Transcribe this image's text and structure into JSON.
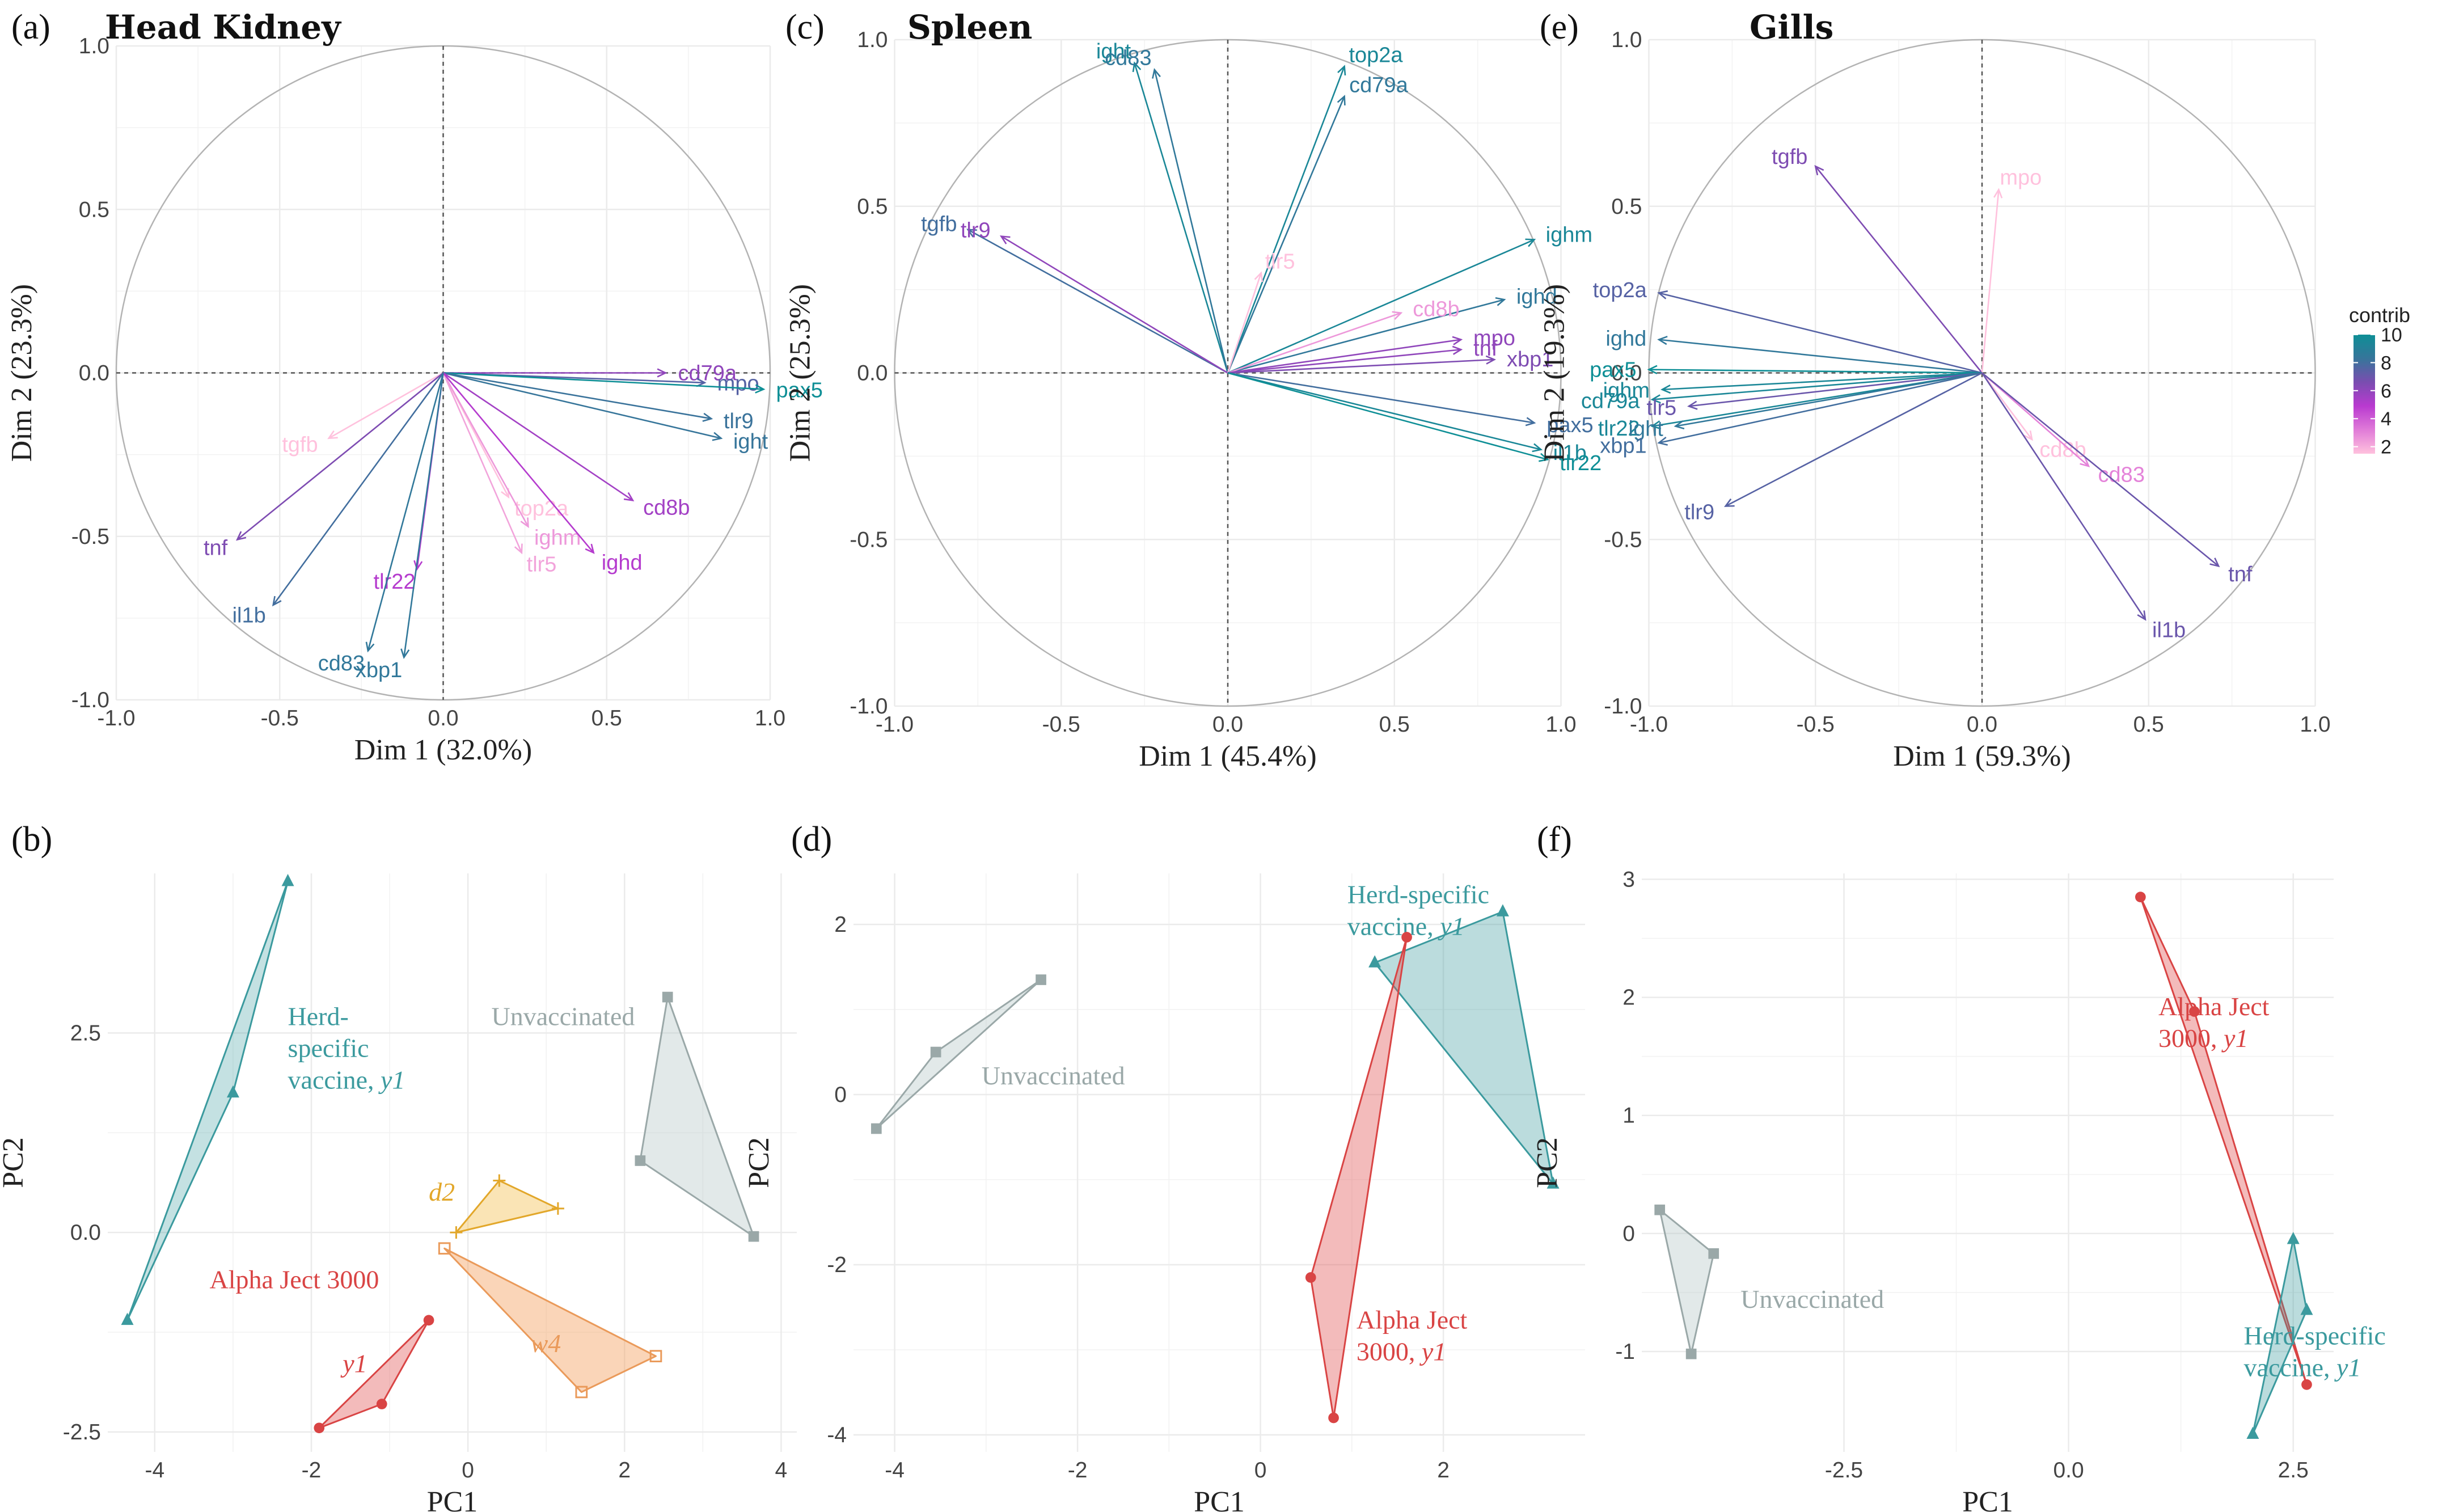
{
  "chart_data": [
    {
      "id": "a",
      "type": "pca-variables",
      "panel_label": "(a)",
      "title": "Head Kidney",
      "xlabel": "Dim 1 (32.0%)",
      "ylabel": "Dim 2 (23.3%)",
      "xlim": [
        -1.0,
        1.0
      ],
      "ylim": [
        -1.0,
        1.0
      ],
      "xticks": [
        {
          "v": -1.0,
          "t": "-1.0"
        },
        {
          "v": -0.5,
          "t": "-0.5"
        },
        {
          "v": 0.0,
          "t": "0.0"
        },
        {
          "v": 0.5,
          "t": "0.5"
        },
        {
          "v": 1.0,
          "t": "1.0"
        }
      ],
      "yticks": [
        {
          "v": -1.0,
          "t": "-1.0"
        },
        {
          "v": -0.5,
          "t": "-0.5"
        },
        {
          "v": 0.0,
          "t": "0.0"
        },
        {
          "v": 0.5,
          "t": "0.5"
        },
        {
          "v": 1.0,
          "t": "1.0"
        }
      ],
      "variables": [
        {
          "name": "cd79a",
          "x": 0.68,
          "y": 0.0,
          "contrib": 6.0
        },
        {
          "name": "mpo",
          "x": 0.8,
          "y": -0.03,
          "contrib": 7.5
        },
        {
          "name": "pax5",
          "x": 0.98,
          "y": -0.05,
          "contrib": 10.0
        },
        {
          "name": "tlr9",
          "x": 0.82,
          "y": -0.14,
          "contrib": 8.2
        },
        {
          "name": "ight",
          "x": 0.85,
          "y": -0.2,
          "contrib": 8.3
        },
        {
          "name": "tgfb",
          "x": -0.35,
          "y": -0.2,
          "contrib": 1.5
        },
        {
          "name": "top2a",
          "x": 0.2,
          "y": -0.38,
          "contrib": 1.5
        },
        {
          "name": "ighm",
          "x": 0.26,
          "y": -0.47,
          "contrib": 2.5
        },
        {
          "name": "tlr5",
          "x": 0.24,
          "y": -0.55,
          "contrib": 2.2
        },
        {
          "name": "cd8b",
          "x": 0.58,
          "y": -0.39,
          "contrib": 5.5
        },
        {
          "name": "ighd",
          "x": 0.46,
          "y": -0.55,
          "contrib": 5.0
        },
        {
          "name": "tnf",
          "x": -0.63,
          "y": -0.51,
          "contrib": 6.5
        },
        {
          "name": "il1b",
          "x": -0.52,
          "y": -0.71,
          "contrib": 8.0
        },
        {
          "name": "tlr22",
          "x": -0.08,
          "y": -0.6,
          "contrib": 5.0
        },
        {
          "name": "cd83",
          "x": -0.23,
          "y": -0.85,
          "contrib": 8.5
        },
        {
          "name": "xbp1",
          "x": -0.12,
          "y": -0.87,
          "contrib": 8.5
        }
      ]
    },
    {
      "id": "c",
      "type": "pca-variables",
      "panel_label": "(c)",
      "title": "Spleen",
      "xlabel": "Dim 1 (45.4%)",
      "ylabel": "Dim 2 (25.3%)",
      "xlim": [
        -1.0,
        1.0
      ],
      "ylim": [
        -1.0,
        1.0
      ],
      "xticks": [
        {
          "v": -1.0,
          "t": "-1.0"
        },
        {
          "v": -0.5,
          "t": "-0.5"
        },
        {
          "v": 0.0,
          "t": "0.0"
        },
        {
          "v": 0.5,
          "t": "0.5"
        },
        {
          "v": 1.0,
          "t": "1.0"
        }
      ],
      "yticks": [
        {
          "v": -1.0,
          "t": "-1.0"
        },
        {
          "v": -0.5,
          "t": "-0.5"
        },
        {
          "v": 0.0,
          "t": "0.0"
        },
        {
          "v": 0.5,
          "t": "0.5"
        },
        {
          "v": 1.0,
          "t": "1.0"
        }
      ],
      "variables": [
        {
          "name": "ight",
          "x": -0.28,
          "y": 0.93,
          "contrib": 9.5
        },
        {
          "name": "cd83",
          "x": -0.22,
          "y": 0.91,
          "contrib": 8.5
        },
        {
          "name": "top2a",
          "x": 0.35,
          "y": 0.92,
          "contrib": 9.5
        },
        {
          "name": "cd79a",
          "x": 0.35,
          "y": 0.83,
          "contrib": 8.5
        },
        {
          "name": "tgfb",
          "x": -0.78,
          "y": 0.43,
          "contrib": 8.0
        },
        {
          "name": "tlr9",
          "x": -0.68,
          "y": 0.41,
          "contrib": 6.0
        },
        {
          "name": "tlr5",
          "x": 0.1,
          "y": 0.3,
          "contrib": 1.5
        },
        {
          "name": "ighm",
          "x": 0.92,
          "y": 0.4,
          "contrib": 9.5
        },
        {
          "name": "ighd",
          "x": 0.83,
          "y": 0.22,
          "contrib": 8.5
        },
        {
          "name": "cd8b",
          "x": 0.52,
          "y": 0.18,
          "contrib": 2.5
        },
        {
          "name": "mpo",
          "x": 0.7,
          "y": 0.1,
          "contrib": 6.0
        },
        {
          "name": "tnf",
          "x": 0.7,
          "y": 0.07,
          "contrib": 6.0
        },
        {
          "name": "xbp1",
          "x": 0.8,
          "y": 0.04,
          "contrib": 6.5
        },
        {
          "name": "pax5",
          "x": 0.92,
          "y": -0.15,
          "contrib": 8.0
        },
        {
          "name": "il1b",
          "x": 0.94,
          "y": -0.23,
          "contrib": 9.5
        },
        {
          "name": "tlr22",
          "x": 0.96,
          "y": -0.26,
          "contrib": 10.0
        }
      ]
    },
    {
      "id": "e",
      "type": "pca-variables",
      "panel_label": "(e)",
      "title": "Gills",
      "xlabel": "Dim 1 (59.3%)",
      "ylabel": "Dim 2 (19.3%)",
      "xlim": [
        -1.0,
        1.0
      ],
      "ylim": [
        -1.0,
        1.0
      ],
      "xticks": [
        {
          "v": -1.0,
          "t": "-1.0"
        },
        {
          "v": -0.5,
          "t": "-0.5"
        },
        {
          "v": 0.0,
          "t": "0.0"
        },
        {
          "v": 0.5,
          "t": "0.5"
        },
        {
          "v": 1.0,
          "t": "1.0"
        }
      ],
      "yticks": [
        {
          "v": -1.0,
          "t": "-1.0"
        },
        {
          "v": -0.5,
          "t": "-0.5"
        },
        {
          "v": 0.0,
          "t": "0.0"
        },
        {
          "v": 0.5,
          "t": "0.5"
        },
        {
          "v": 1.0,
          "t": "1.0"
        }
      ],
      "variables": [
        {
          "name": "tgfb",
          "x": -0.5,
          "y": 0.62,
          "contrib": 6.5
        },
        {
          "name": "mpo",
          "x": 0.05,
          "y": 0.55,
          "contrib": 1.5
        },
        {
          "name": "top2a",
          "x": -0.97,
          "y": 0.24,
          "contrib": 7.5
        },
        {
          "name": "ighd",
          "x": -0.97,
          "y": 0.1,
          "contrib": 8.5
        },
        {
          "name": "pax5",
          "x": -1.0,
          "y": 0.01,
          "contrib": 10.0
        },
        {
          "name": "ighm",
          "x": -0.96,
          "y": -0.05,
          "contrib": 9.5
        },
        {
          "name": "cd79a",
          "x": -0.99,
          "y": -0.08,
          "contrib": 9.5
        },
        {
          "name": "tlr5",
          "x": -0.88,
          "y": -0.1,
          "contrib": 7.0
        },
        {
          "name": "tlr22",
          "x": -0.99,
          "y": -0.16,
          "contrib": 9.5
        },
        {
          "name": "ight",
          "x": -0.92,
          "y": -0.16,
          "contrib": 8.5
        },
        {
          "name": "xbp1",
          "x": -0.97,
          "y": -0.21,
          "contrib": 8.0
        },
        {
          "name": "tlr9",
          "x": -0.77,
          "y": -0.4,
          "contrib": 7.5
        },
        {
          "name": "cd8b",
          "x": 0.15,
          "y": -0.2,
          "contrib": 1.5
        },
        {
          "name": "cd83",
          "x": 0.32,
          "y": -0.28,
          "contrib": 3.0
        },
        {
          "name": "tnf",
          "x": 0.71,
          "y": -0.58,
          "contrib": 7.0
        },
        {
          "name": "il1b",
          "x": 0.49,
          "y": -0.74,
          "contrib": 7.0
        }
      ]
    },
    {
      "id": "b",
      "type": "pca-individuals",
      "panel_label": "(b)",
      "xlabel": "PC1",
      "ylabel": "PC2",
      "xlim": [
        -4.6,
        4.2
      ],
      "ylim": [
        -2.75,
        4.5
      ],
      "xticks": [
        {
          "v": -4,
          "t": "-4"
        },
        {
          "v": -2,
          "t": "-2"
        },
        {
          "v": 0,
          "t": "0"
        },
        {
          "v": 2,
          "t": "2"
        },
        {
          "v": 4,
          "t": "4"
        }
      ],
      "yticks": [
        {
          "v": -2.5,
          "t": "-2.5"
        },
        {
          "v": 0.0,
          "t": "0.0"
        },
        {
          "v": 2.5,
          "t": "2.5"
        }
      ],
      "groups": [
        {
          "name": "Herd-specific vaccine, y1",
          "label_lines": [
            [
              "Herd-",
              ""
            ],
            [
              "specific",
              ""
            ],
            [
              "vaccine, ",
              "y1"
            ]
          ],
          "label_x": -2.3,
          "label_y": 2.6,
          "color": "#3b9a9e",
          "fill": "#3b9a9e",
          "fill_opacity": 0.3,
          "marker": "triangle",
          "points": [
            [
              -2.3,
              4.4
            ],
            [
              -3.0,
              1.75
            ],
            [
              -4.35,
              -1.1
            ]
          ]
        },
        {
          "name": "Unvaccinated",
          "label_lines": [
            [
              "Unvaccinated",
              ""
            ]
          ],
          "label_x": 0.3,
          "label_y": 2.6,
          "color": "#9aa8a8",
          "fill": "#b7c9c8",
          "fill_opacity": 0.4,
          "marker": "square",
          "points": [
            [
              2.55,
              2.95
            ],
            [
              2.2,
              0.9
            ],
            [
              3.65,
              -0.05
            ]
          ]
        },
        {
          "name": "d2",
          "label_lines": [
            [
              "",
              "d2"
            ]
          ],
          "label_x": -0.5,
          "label_y": 0.4,
          "color": "#e2a72a",
          "fill": "#f5c45a",
          "fill_opacity": 0.45,
          "marker": "plus",
          "points": [
            [
              -0.15,
              0.0
            ],
            [
              0.4,
              0.65
            ],
            [
              1.15,
              0.3
            ]
          ]
        },
        {
          "name": "w4",
          "label_lines": [
            [
              "",
              "w4"
            ]
          ],
          "label_x": 0.8,
          "label_y": -1.5,
          "color": "#ea9a5a",
          "fill": "#f4a261",
          "fill_opacity": 0.45,
          "marker": "square-open",
          "points": [
            [
              -0.3,
              -0.2
            ],
            [
              2.4,
              -1.55
            ],
            [
              1.45,
              -2.0
            ]
          ]
        },
        {
          "name": "Alpha Ject 3000",
          "label_lines": [
            [
              "Alpha Ject 3000",
              ""
            ]
          ],
          "label_x": -3.3,
          "label_y": -0.7,
          "color": "#d94444",
          "fill": "#e05555",
          "fill_opacity": 0.4,
          "marker": "circle",
          "points": [
            [
              -0.5,
              -1.1
            ],
            [
              -1.1,
              -2.15
            ],
            [
              -1.9,
              -2.45
            ]
          ]
        },
        {
          "name": "y1",
          "label_lines": [
            [
              "",
              "y1"
            ]
          ],
          "label_x": -1.6,
          "label_y": -1.75,
          "color": "#d94444",
          "fill": "none",
          "fill_opacity": 0,
          "marker": "none",
          "points": []
        }
      ]
    },
    {
      "id": "d",
      "type": "pca-individuals",
      "panel_label": "(d)",
      "xlabel": "PC1",
      "ylabel": "PC2",
      "xlim": [
        -4.45,
        3.55
      ],
      "ylim": [
        -4.2,
        2.6
      ],
      "xticks": [
        {
          "v": -4,
          "t": "-4"
        },
        {
          "v": -2,
          "t": "-2"
        },
        {
          "v": 0,
          "t": "0"
        },
        {
          "v": 2,
          "t": "2"
        }
      ],
      "yticks": [
        {
          "v": -4,
          "t": "-4"
        },
        {
          "v": -2,
          "t": "-2"
        },
        {
          "v": 0,
          "t": "0"
        },
        {
          "v": 2,
          "t": "2"
        }
      ],
      "groups": [
        {
          "name": "Unvaccinated",
          "label_lines": [
            [
              "Unvaccinated",
              ""
            ]
          ],
          "label_x": -3.05,
          "label_y": 0.12,
          "color": "#9aa8a8",
          "fill": "#b7c9c8",
          "fill_opacity": 0.4,
          "marker": "square",
          "points": [
            [
              -2.4,
              1.35
            ],
            [
              -3.55,
              0.5
            ],
            [
              -4.2,
              -0.4
            ]
          ]
        },
        {
          "name": "Herd-specific vaccine, y1",
          "label_lines": [
            [
              "Herd-specific",
              ""
            ],
            [
              "vaccine, ",
              "y1"
            ]
          ],
          "label_x": 0.95,
          "label_y": 2.25,
          "color": "#3b9a9e",
          "fill": "#3b9a9e",
          "fill_opacity": 0.35,
          "marker": "triangle",
          "points": [
            [
              1.25,
              1.55
            ],
            [
              2.65,
              2.15
            ],
            [
              3.2,
              -1.05
            ]
          ]
        },
        {
          "name": "Alpha Ject 3000, y1",
          "label_lines": [
            [
              "Alpha Ject",
              ""
            ],
            [
              "3000, ",
              "y1"
            ]
          ],
          "label_x": 1.05,
          "label_y": -2.75,
          "color": "#d94444",
          "fill": "#e05555",
          "fill_opacity": 0.4,
          "marker": "circle",
          "points": [
            [
              1.6,
              1.85
            ],
            [
              0.55,
              -2.15
            ],
            [
              0.8,
              -3.8
            ]
          ]
        }
      ]
    },
    {
      "id": "f",
      "type": "pca-individuals",
      "panel_label": "(f)",
      "xlabel": "PC1",
      "ylabel": "PC2",
      "xlim": [
        -4.75,
        2.95
      ],
      "ylim": [
        -1.85,
        3.05
      ],
      "xticks": [
        {
          "v": -2.5,
          "t": "-2.5"
        },
        {
          "v": 0.0,
          "t": "0.0"
        },
        {
          "v": 2.5,
          "t": "2.5"
        }
      ],
      "yticks": [
        {
          "v": -1,
          "t": "-1"
        },
        {
          "v": 0,
          "t": "0"
        },
        {
          "v": 1,
          "t": "1"
        },
        {
          "v": 2,
          "t": "2"
        },
        {
          "v": 3,
          "t": "3"
        }
      ],
      "groups": [
        {
          "name": "Alpha Ject 3000, y1",
          "label_lines": [
            [
              "Alpha Ject",
              ""
            ],
            [
              "3000, ",
              "y1"
            ]
          ],
          "label_x": 1.0,
          "label_y": 1.85,
          "color": "#d94444",
          "fill": "#e05555",
          "fill_opacity": 0.4,
          "marker": "circle",
          "points": [
            [
              0.8,
              2.85
            ],
            [
              1.4,
              1.88
            ],
            [
              2.65,
              -1.28
            ]
          ]
        },
        {
          "name": "Unvaccinated",
          "label_lines": [
            [
              "Unvaccinated",
              ""
            ]
          ],
          "label_x": -3.65,
          "label_y": -0.63,
          "color": "#9aa8a8",
          "fill": "#b7c9c8",
          "fill_opacity": 0.4,
          "marker": "square",
          "points": [
            [
              -4.55,
              0.2
            ],
            [
              -3.95,
              -0.17
            ],
            [
              -4.2,
              -1.02
            ]
          ]
        },
        {
          "name": "Herd-specific vaccine, y1",
          "label_lines": [
            [
              "Herd-specific",
              ""
            ],
            [
              "vaccine, ",
              "y1"
            ]
          ],
          "label_x": 1.95,
          "label_y": -0.94,
          "color": "#3b9a9e",
          "fill": "#3b9a9e",
          "fill_opacity": 0.35,
          "marker": "triangle",
          "points": [
            [
              2.5,
              -0.05
            ],
            [
              2.65,
              -0.65
            ],
            [
              2.05,
              -1.7
            ]
          ]
        }
      ]
    }
  ],
  "legend": {
    "title": "contrib",
    "ticks": [
      {
        "v": 10,
        "t": "10"
      },
      {
        "v": 8,
        "t": "8"
      },
      {
        "v": 6,
        "t": "6"
      },
      {
        "v": 4,
        "t": "4"
      },
      {
        "v": 2,
        "t": "2"
      }
    ],
    "range": [
      1.5,
      10
    ],
    "colors": [
      "#ffc1dd",
      "#e07bd8",
      "#b93ad0",
      "#7a4db0",
      "#36759a",
      "#0e8f96"
    ]
  },
  "colors": {
    "grid": "#ebebeb",
    "dashed": "#555555",
    "circle": "#b3b3b3"
  }
}
